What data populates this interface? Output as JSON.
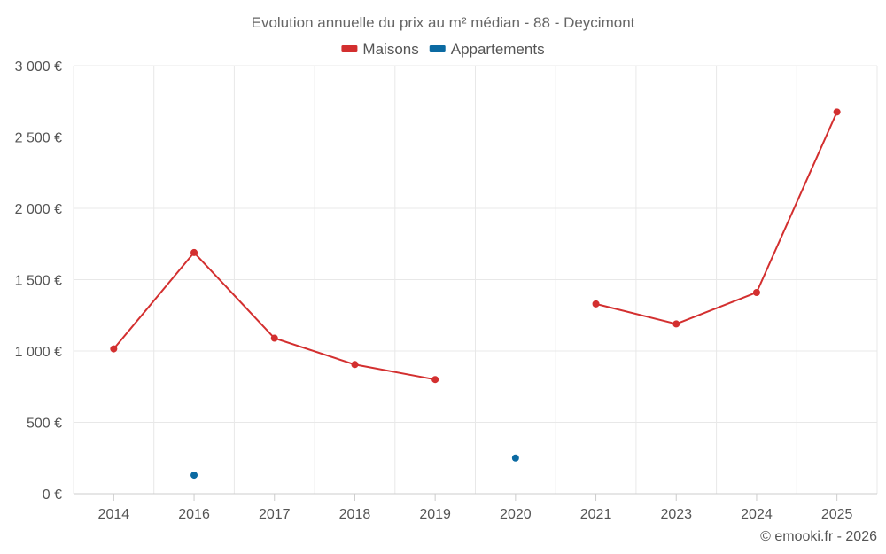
{
  "chart_data": {
    "type": "line",
    "title": "Evolution annuelle du prix au m² médian - 88 - Deycimont",
    "categories": [
      "2014",
      "2016",
      "2017",
      "2018",
      "2019",
      "2020",
      "2021",
      "2023",
      "2024",
      "2025"
    ],
    "series": [
      {
        "name": "Maisons",
        "color": "#d32f2f",
        "values": [
          1015,
          1690,
          1090,
          905,
          800,
          null,
          1330,
          1190,
          1410,
          2675
        ]
      },
      {
        "name": "Appartements",
        "color": "#0b6aa2",
        "values": [
          null,
          130,
          null,
          null,
          null,
          250,
          null,
          null,
          null,
          null
        ]
      }
    ],
    "ylim": [
      0,
      3000
    ],
    "yticks": [
      0,
      500,
      1000,
      1500,
      2000,
      2500,
      3000
    ],
    "ytick_labels": [
      "0 €",
      "500 €",
      "1 000 €",
      "1 500 €",
      "2 000 €",
      "2 500 €",
      "3 000 €"
    ],
    "xlabel": "",
    "ylabel": "",
    "grid": true,
    "legend_position": "top-center"
  },
  "credit": "© emooki.fr - 2026"
}
